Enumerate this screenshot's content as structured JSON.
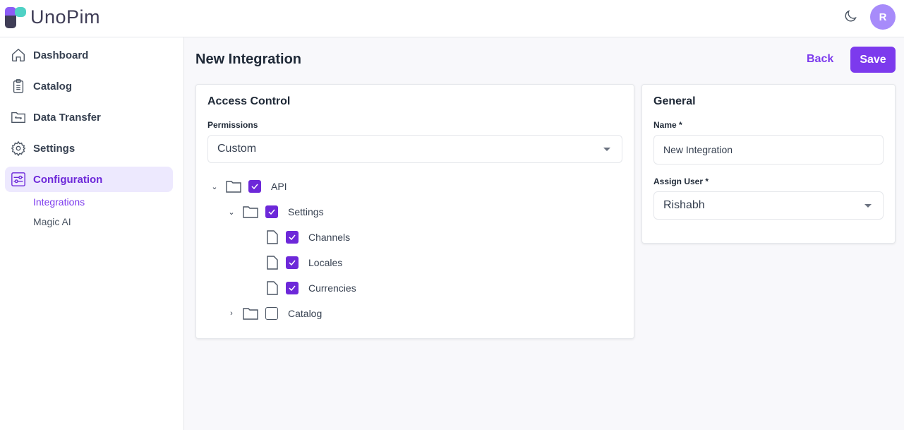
{
  "app": {
    "logo": "UnoPim",
    "avatar_initial": "R"
  },
  "sidebar": {
    "items": [
      {
        "label": "Dashboard",
        "icon": "home-icon"
      },
      {
        "label": "Catalog",
        "icon": "clipboard-list-icon"
      },
      {
        "label": "Data Transfer",
        "icon": "folder-transfer-icon"
      },
      {
        "label": "Settings",
        "icon": "gear-icon"
      },
      {
        "label": "Configuration",
        "icon": "sliders-icon",
        "active": true
      }
    ],
    "subitems": [
      {
        "label": "Integrations",
        "active": true
      },
      {
        "label": "Magic AI"
      }
    ]
  },
  "page": {
    "title": "New Integration",
    "back_label": "Back",
    "save_label": "Save"
  },
  "access": {
    "title": "Access Control",
    "permissions_label": "Permissions",
    "permissions_value": "Custom",
    "tree": [
      {
        "label": "API",
        "checked": true,
        "expanded": true,
        "type": "folder"
      },
      {
        "label": "Settings",
        "checked": true,
        "expanded": true,
        "type": "folder"
      },
      {
        "label": "Channels",
        "checked": true,
        "type": "file"
      },
      {
        "label": "Locales",
        "checked": true,
        "type": "file"
      },
      {
        "label": "Currencies",
        "checked": true,
        "type": "file"
      },
      {
        "label": "Catalog",
        "checked": false,
        "expanded": false,
        "type": "folder"
      }
    ]
  },
  "general": {
    "title": "General",
    "name_label": "Name *",
    "name_value": "New Integration",
    "user_label": "Assign User *",
    "user_value": "Rishabh"
  },
  "colors": {
    "accent": "#7c3aed",
    "active_bg": "#ede9fe"
  }
}
